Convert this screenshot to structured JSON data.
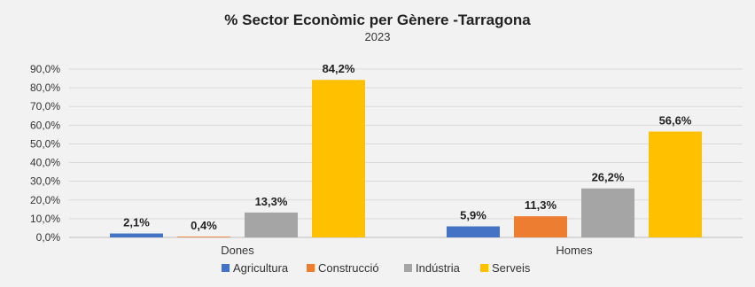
{
  "chart_data": {
    "type": "bar",
    "title": "% Sector Econòmic per Gènere -Tarragona",
    "subtitle": "2023",
    "xlabel": "",
    "ylabel": "",
    "categories": [
      "Dones",
      "Homes"
    ],
    "series": [
      {
        "name": "Agricultura",
        "color": "#4472c4",
        "values": [
          2.1,
          5.9
        ],
        "labels": [
          "2,1%",
          "5,9%"
        ]
      },
      {
        "name": "Construcció",
        "color": "#ed7d31",
        "values": [
          0.4,
          11.3
        ],
        "labels": [
          "0,4%",
          "11,3%"
        ]
      },
      {
        "name": "Indústria",
        "color": "#a5a5a5",
        "values": [
          13.3,
          26.2
        ],
        "labels": [
          "13,3%",
          "26,2%"
        ]
      },
      {
        "name": "Serveis",
        "color": "#ffc000",
        "values": [
          84.2,
          56.6
        ],
        "labels": [
          "84,2%",
          "56,6%"
        ]
      }
    ],
    "yticks": [
      "0,0%",
      "10,0%",
      "20,0%",
      "30,0%",
      "40,0%",
      "50,0%",
      "60,0%",
      "70,0%",
      "80,0%",
      "90,0%"
    ],
    "ylim": [
      0,
      90
    ],
    "grid": true,
    "legend_position": "bottom"
  }
}
